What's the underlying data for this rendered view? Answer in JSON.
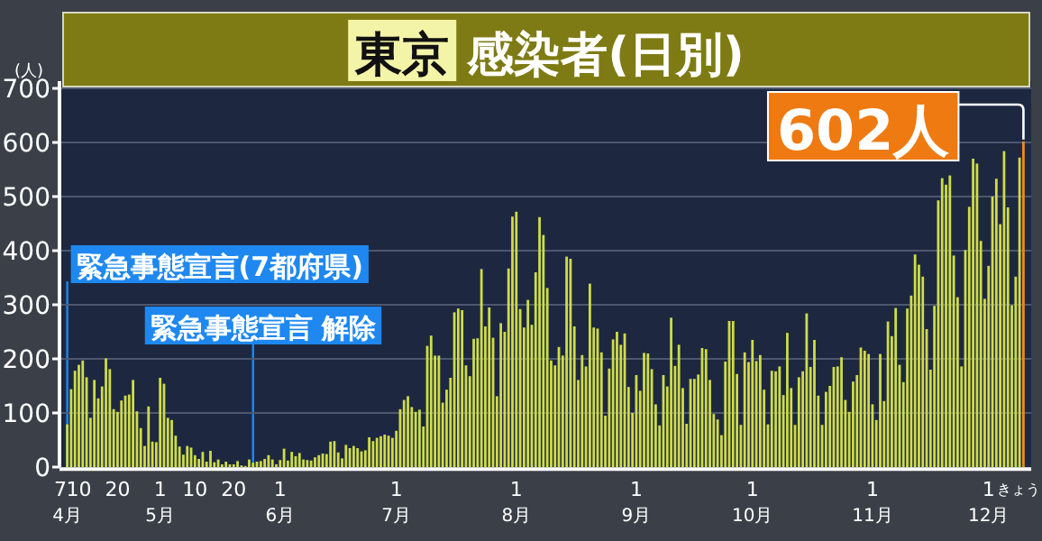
{
  "chart_data": {
    "type": "bar",
    "title": "東京",
    "subtitle": "感染者(日別)",
    "ylabel": "(人)",
    "xlim": [
      "--04-05",
      "--12-12"
    ],
    "ylim": [
      0,
      700
    ],
    "yticks": [
      0,
      100,
      200,
      300,
      400,
      500,
      600,
      700
    ],
    "xticks": [
      {
        "value": "--04-07",
        "label": "7\n4月"
      },
      {
        "value": "--04-10",
        "label": "10"
      },
      {
        "value": "--04-20",
        "label": "20"
      },
      {
        "value": "--05-01",
        "label": "1\n5月"
      },
      {
        "value": "--05-10",
        "label": "10"
      },
      {
        "value": "--05-20",
        "label": "20"
      },
      {
        "value": "--06-01",
        "label": "1\n6月"
      },
      {
        "value": "--07-01",
        "label": "1\n7月"
      },
      {
        "value": "--08-01",
        "label": "1\n8月"
      },
      {
        "value": "--09-01",
        "label": "1\n9月"
      },
      {
        "value": "--10-01",
        "label": "1\n10月"
      },
      {
        "value": "--11-01",
        "label": "1\n11月"
      },
      {
        "value": "--12-01",
        "label": "1\n12月"
      },
      {
        "value": "--12-10",
        "label": "きょう"
      }
    ],
    "grid": "y",
    "ref_lines": [
      {
        "axis": "x",
        "value": "--04-07",
        "label": "緊急事態宣言(7都府県)",
        "color": "#1e88f0"
      },
      {
        "axis": "x",
        "value": "--05-25",
        "label": "緊急事態宣言 解除",
        "color": "#1e88f0"
      }
    ],
    "annotations": [
      {
        "text": "602人",
        "x": "--12-10",
        "y": 602
      }
    ],
    "series": [
      {
        "color": "#cfdc48",
        "x": [
          "--04-07",
          "--04-08",
          "--04-09",
          "--04-10",
          "--04-11",
          "--04-12",
          "--04-13",
          "--04-14",
          "--04-15",
          "--04-16",
          "--04-17",
          "--04-18",
          "--04-19",
          "--04-20",
          "--04-21",
          "--04-22",
          "--04-23",
          "--04-24",
          "--04-25",
          "--04-26",
          "--04-27",
          "--04-28",
          "--04-29",
          "--04-30",
          "--05-01",
          "--05-02",
          "--05-03",
          "--05-04",
          "--05-05",
          "--05-06",
          "--05-07",
          "--05-08",
          "--05-09",
          "--05-10",
          "--05-11",
          "--05-12",
          "--05-13",
          "--05-14",
          "--05-15",
          "--05-16",
          "--05-17",
          "--05-18",
          "--05-19",
          "--05-20",
          "--05-21",
          "--05-22",
          "--05-23",
          "--05-24",
          "--05-25",
          "--05-26",
          "--05-27",
          "--05-28",
          "--05-29",
          "--05-30",
          "--05-31",
          "--06-01",
          "--06-02",
          "--06-03",
          "--06-04",
          "--06-05",
          "--06-06",
          "--06-07",
          "--06-08",
          "--06-09",
          "--06-10",
          "--06-11",
          "--06-12",
          "--06-13",
          "--06-14",
          "--06-15",
          "--06-16",
          "--06-17",
          "--06-18",
          "--06-19",
          "--06-20",
          "--06-21",
          "--06-22",
          "--06-23",
          "--06-24",
          "--06-25",
          "--06-26",
          "--06-27",
          "--06-28",
          "--06-29",
          "--06-30",
          "--07-01",
          "--07-02",
          "--07-03",
          "--07-04",
          "--07-05",
          "--07-06",
          "--07-07",
          "--07-08",
          "--07-09",
          "--07-10",
          "--07-11",
          "--07-12",
          "--07-13",
          "--07-14",
          "--07-15",
          "--07-16",
          "--07-17",
          "--07-18",
          "--07-19",
          "--07-20",
          "--07-21",
          "--07-22",
          "--07-23",
          "--07-24",
          "--07-25",
          "--07-26",
          "--07-27",
          "--07-28",
          "--07-29",
          "--07-30",
          "--07-31",
          "--08-01",
          "--08-02",
          "--08-03",
          "--08-04",
          "--08-05",
          "--08-06",
          "--08-07",
          "--08-08",
          "--08-09",
          "--08-10",
          "--08-11",
          "--08-12",
          "--08-13",
          "--08-14",
          "--08-15",
          "--08-16",
          "--08-17",
          "--08-18",
          "--08-19",
          "--08-20",
          "--08-21",
          "--08-22",
          "--08-23",
          "--08-24",
          "--08-25",
          "--08-26",
          "--08-27",
          "--08-28",
          "--08-29",
          "--08-30",
          "--08-31",
          "--09-01",
          "--09-02",
          "--09-03",
          "--09-04",
          "--09-05",
          "--09-06",
          "--09-07",
          "--09-08",
          "--09-09",
          "--09-10",
          "--09-11",
          "--09-12",
          "--09-13",
          "--09-14",
          "--09-15",
          "--09-16",
          "--09-17",
          "--09-18",
          "--09-19",
          "--09-20",
          "--09-21",
          "--09-22",
          "--09-23",
          "--09-24",
          "--09-25",
          "--09-26",
          "--09-27",
          "--09-28",
          "--09-29",
          "--09-30",
          "--10-01",
          "--10-02",
          "--10-03",
          "--10-04",
          "--10-05",
          "--10-06",
          "--10-07",
          "--10-08",
          "--10-09",
          "--10-10",
          "--10-11",
          "--10-12",
          "--10-13",
          "--10-14",
          "--10-15",
          "--10-16",
          "--10-17",
          "--10-18",
          "--10-19",
          "--10-20",
          "--10-21",
          "--10-22",
          "--10-23",
          "--10-24",
          "--10-25",
          "--10-26",
          "--10-27",
          "--10-28",
          "--10-29",
          "--10-30",
          "--10-31",
          "--11-01",
          "--11-02",
          "--11-03",
          "--11-04",
          "--11-05",
          "--11-06",
          "--11-07",
          "--11-08",
          "--11-09",
          "--11-10",
          "--11-11",
          "--11-12",
          "--11-13",
          "--11-14",
          "--11-15",
          "--11-16",
          "--11-17",
          "--11-18",
          "--11-19",
          "--11-20",
          "--11-21",
          "--11-22",
          "--11-23",
          "--11-24",
          "--11-25",
          "--11-26",
          "--11-27",
          "--11-28",
          "--11-29",
          "--11-30",
          "--12-01",
          "--12-02",
          "--12-03",
          "--12-04",
          "--12-05",
          "--12-06",
          "--12-07",
          "--12-08",
          "--12-09"
        ],
        "values": [
          79,
          144,
          178,
          189,
          197,
          166,
          91,
          161,
          127,
          149,
          201,
          181,
          107,
          102,
          123,
          132,
          134,
          161,
          103,
          72,
          39,
          112,
          47,
          46,
          165,
          154,
          91,
          87,
          58,
          38,
          23,
          39,
          36,
          22,
          15,
          28,
          10,
          30,
          9,
          14,
          5,
          10,
          5,
          5,
          11,
          3,
          2,
          14,
          8,
          10,
          11,
          15,
          22,
          14,
          5,
          13,
          34,
          12,
          28,
          20,
          26,
          14,
          13,
          12,
          18,
          22,
          25,
          24,
          47,
          48,
          27,
          16,
          41,
          35,
          39,
          35,
          29,
          31,
          55,
          48,
          54,
          57,
          60,
          58,
          54,
          67,
          107,
          124,
          131,
          111,
          102,
          106,
          75,
          224,
          243,
          206,
          206,
          119,
          143,
          165,
          286,
          293,
          290,
          188,
          168,
          237,
          238,
          366,
          260,
          295,
          239,
          131,
          266,
          250,
          367,
          463,
          472,
          292,
          258,
          309,
          263,
          360,
          462,
          429,
          331,
          197,
          188,
          222,
          206,
          389,
          385,
          260,
          161,
          207,
          186,
          339,
          258,
          256,
          212,
          95,
          182,
          236,
          250,
          226,
          247,
          148,
          100,
          170,
          141,
          211,
          210,
          181,
          116,
          77,
          170,
          149,
          276,
          187,
          226,
          146,
          80,
          163,
          163,
          171,
          220,
          218,
          161,
          98,
          88,
          59,
          195,
          270,
          270,
          172,
          78,
          212,
          194,
          235,
          196,
          207,
          143,
          79,
          178,
          177,
          186,
          133,
          248,
          146,
          78,
          166,
          177,
          284,
          185,
          235,
          132,
          78,
          139,
          150,
          185,
          186,
          203,
          124,
          102,
          158,
          170,
          221,
          215,
          209,
          116,
          87,
          209,
          122,
          269,
          242,
          294,
          189,
          157,
          293,
          317,
          393,
          374,
          352,
          255,
          180,
          298,
          493,
          534,
          522,
          539,
          391,
          314,
          186,
          401,
          481,
          570,
          561,
          418,
          311,
          372,
          500,
          533,
          449,
          584,
          480,
          299,
          352,
          572
        ]
      },
      {
        "color": "#f08a18",
        "x": [
          "--12-10"
        ],
        "values": [
          602
        ]
      }
    ]
  }
}
